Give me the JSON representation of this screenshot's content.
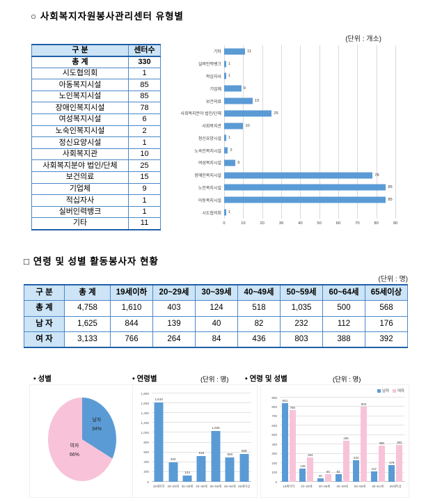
{
  "section1": {
    "title": "○ 사회복지자원봉사관리센터 유형별",
    "unit": "(단위 : 개소)",
    "table": {
      "headers": [
        "구 분",
        "센터수"
      ],
      "rows": [
        [
          "총 계",
          "330"
        ],
        [
          "시도협의회",
          "1"
        ],
        [
          "아동복지시설",
          "85"
        ],
        [
          "노인복지시설",
          "85"
        ],
        [
          "장애인복지시설",
          "78"
        ],
        [
          "여성복지시설",
          "6"
        ],
        [
          "노숙인복지시설",
          "2"
        ],
        [
          "정신요양시설",
          "1"
        ],
        [
          "사회복지관",
          "10"
        ],
        [
          "사회복지분야 법인/단체",
          "25"
        ],
        [
          "보건의료",
          "15"
        ],
        [
          "기업체",
          "9"
        ],
        [
          "적십자사",
          "1"
        ],
        [
          "실버인력뱅크",
          "1"
        ],
        [
          "기타",
          "11"
        ]
      ]
    }
  },
  "section2": {
    "title": "□ 연령 및 성별 활동봉사자 현황",
    "unit": "(단위 : 명)",
    "table": {
      "headers": [
        "구 분",
        "총 계",
        "19세이하",
        "20~29세",
        "30~39세",
        "40~49세",
        "50~59세",
        "60~64세",
        "65세이상"
      ],
      "rows": [
        [
          "총 계",
          "4,758",
          "1,610",
          "403",
          "124",
          "518",
          "1,035",
          "500",
          "568"
        ],
        [
          "남 자",
          "1,625",
          "844",
          "139",
          "40",
          "82",
          "232",
          "112",
          "176"
        ],
        [
          "여 자",
          "3,133",
          "766",
          "264",
          "84",
          "436",
          "803",
          "388",
          "392"
        ]
      ]
    }
  },
  "charts": {
    "gender": {
      "label": "• 성별"
    },
    "age": {
      "label": "• 연령별",
      "unit": "(단위 : 명)"
    },
    "age_gender": {
      "label": "• 연령 및 성별",
      "unit": "(단위 : 명)"
    }
  },
  "colors": {
    "bar_blue": "#5b9bd5",
    "bar_pink": "#f8c3d8",
    "table_header": "#cce4f5",
    "table_border": "#4a86c8"
  },
  "chart_data": [
    {
      "type": "bar",
      "orientation": "horizontal",
      "title": "사회복지자원봉사관리센터 유형별",
      "order": "top-to-bottom",
      "categories": [
        "기타",
        "실버인력뱅크",
        "적십자사",
        "기업체",
        "보건의료",
        "사회복지분야 법인/단체",
        "사회복지관",
        "정신요양시설",
        "노숙인복지시설",
        "여성복지시설",
        "장애인복지시설",
        "노인복지시설",
        "아동복지시설",
        "시도협의회"
      ],
      "values": [
        11,
        1,
        1,
        9,
        15,
        25,
        10,
        1,
        2,
        6,
        78,
        85,
        85,
        1
      ],
      "xlim": [
        0,
        90
      ],
      "xticks": [
        "0",
        "10",
        "20",
        "30",
        "40",
        "50",
        "60",
        "70",
        "80",
        "90"
      ],
      "bar_color": "#5b9bd5",
      "grid": true,
      "legend_position": "none"
    },
    {
      "type": "pie",
      "title": "성별",
      "labels": [
        "남자",
        "여자"
      ],
      "values": [
        34,
        66
      ],
      "display": [
        "34%",
        "66%"
      ],
      "colors": [
        "#5b9bd5",
        "#f8c3d8"
      ]
    },
    {
      "type": "bar",
      "title": "연령별",
      "categories": [
        "19세이하",
        "20~29세",
        "30~39세",
        "40~49세",
        "50~59세",
        "60~64세",
        "65세이상"
      ],
      "values": [
        1610,
        403,
        124,
        518,
        1035,
        500,
        568
      ],
      "value_labels": [
        "1,610",
        "403",
        "124",
        "518",
        "1,035",
        "500",
        "568"
      ],
      "ylim": [
        0,
        1800
      ],
      "yticks": [
        "0",
        "200",
        "400",
        "600",
        "800",
        "1,000",
        "1,200",
        "1,400",
        "1,600",
        "1,800"
      ],
      "bar_color": "#5b9bd5",
      "grid": true,
      "legend_position": "none"
    },
    {
      "type": "bar",
      "title": "연령 및 성별",
      "categories": [
        "19세이하",
        "20~29세",
        "30~39세",
        "40~49세",
        "50~59세",
        "60~64세",
        "65세이상"
      ],
      "series": [
        {
          "name": "남자",
          "color": "#5b9bd5",
          "values": [
            844,
            139,
            40,
            82,
            232,
            112,
            176
          ],
          "value_labels": [
            "844",
            "139",
            "40",
            "82",
            "232",
            "112",
            "176"
          ]
        },
        {
          "name": "여자",
          "color": "#f8c3d8",
          "values": [
            766,
            264,
            84,
            436,
            803,
            388,
            392
          ],
          "value_labels": [
            "766",
            "264",
            "84",
            "436",
            "803",
            "388",
            "392"
          ]
        }
      ],
      "ylim": [
        0,
        900
      ],
      "yticks": [
        "0",
        "100",
        "200",
        "300",
        "400",
        "500",
        "600",
        "700",
        "800",
        "900"
      ],
      "grid": true,
      "legend_position": "top-right",
      "legend": [
        "남자",
        "여자"
      ]
    }
  ]
}
